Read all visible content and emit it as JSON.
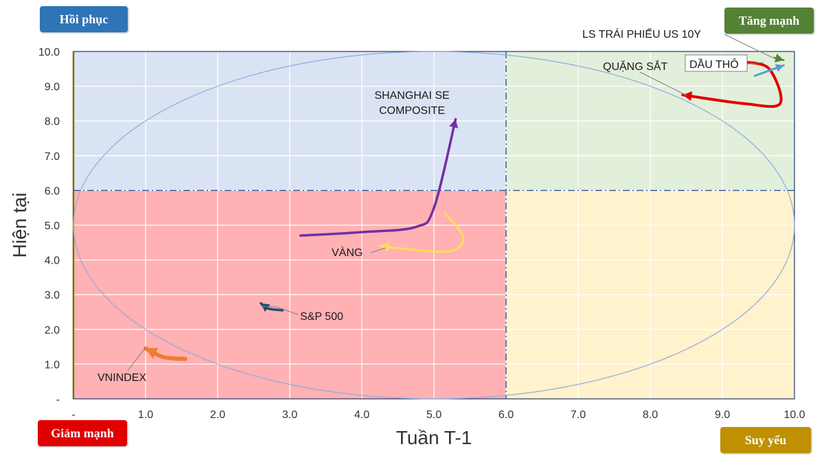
{
  "badges": {
    "top_left": {
      "label": "Hồi phục",
      "color": "#2e75b6"
    },
    "top_right": {
      "label": "Tăng mạnh",
      "color": "#548235"
    },
    "bottom_left": {
      "label": "Giảm mạnh",
      "color": "#e00000"
    },
    "bottom_right": {
      "label": "Suy yếu",
      "color": "#bf9000"
    }
  },
  "chart_data": {
    "type": "line",
    "xlabel": "Tuần T-1",
    "ylabel": "Hiện tại",
    "xlim": [
      0,
      10
    ],
    "ylim": [
      0,
      10
    ],
    "x_ticks": [
      "-",
      "1.0",
      "2.0",
      "3.0",
      "4.0",
      "5.0",
      "6.0",
      "7.0",
      "8.0",
      "9.0",
      "10.0"
    ],
    "y_ticks": [
      "-",
      "1.0",
      "2.0",
      "3.0",
      "4.0",
      "5.0",
      "6.0",
      "7.0",
      "8.0",
      "9.0",
      "10.0"
    ],
    "grid": true,
    "dividers": {
      "x": 6,
      "y": 6
    },
    "quadrant_colors": {
      "top_left": "#dae3f3",
      "top_right": "#e2efda",
      "bottom_left": "#ffb1b4",
      "bottom_right": "#fff2cc"
    },
    "ellipse": {
      "cx": 5,
      "cy": 5,
      "rx": 5,
      "ry": 5
    },
    "series": [
      {
        "name": "SHANGHAI SE COMPOSITE",
        "color": "#7030a0",
        "points": [
          [
            3.15,
            4.7
          ],
          [
            4.0,
            4.8
          ],
          [
            4.75,
            4.95
          ],
          [
            5.0,
            5.5
          ],
          [
            5.3,
            8.05
          ]
        ]
      },
      {
        "name": "VÀNG",
        "color": "#ffd966",
        "points": [
          [
            5.15,
            5.35
          ],
          [
            5.4,
            4.7
          ],
          [
            5.3,
            4.3
          ],
          [
            4.95,
            4.25
          ],
          [
            4.25,
            4.4
          ]
        ]
      },
      {
        "name": "S&P 500",
        "color": "#1f4e79",
        "points": [
          [
            2.9,
            2.55
          ],
          [
            2.7,
            2.6
          ],
          [
            2.6,
            2.75
          ]
        ]
      },
      {
        "name": "VNINDEX",
        "color": "#ed7d31",
        "points": [
          [
            1.55,
            1.15
          ],
          [
            1.25,
            1.2
          ],
          [
            1.0,
            1.45
          ]
        ]
      },
      {
        "name": "QUẶNG SẮT",
        "color": "#e00000",
        "points": [
          [
            9.3,
            9.7
          ],
          [
            9.65,
            9.5
          ],
          [
            9.8,
            8.5
          ],
          [
            9.3,
            8.5
          ],
          [
            8.45,
            8.75
          ]
        ]
      },
      {
        "name": "DẦU THÔ",
        "color": "#5b9bd5",
        "points": [
          [
            9.45,
            9.3
          ],
          [
            9.85,
            9.6
          ]
        ]
      },
      {
        "name": "LS TRÁI PHIẾU US 10Y",
        "color": "#548235",
        "points": [
          [
            9.72,
            9.82
          ],
          [
            9.85,
            9.75
          ]
        ]
      }
    ]
  }
}
